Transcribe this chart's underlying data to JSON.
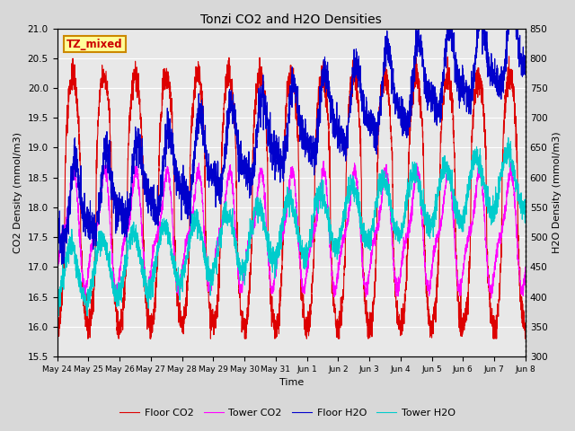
{
  "title": "Tonzi CO2 and H2O Densities",
  "xlabel": "Time",
  "ylabel_left": "CO2 Density (mmol/m3)",
  "ylabel_right": "H2O Density (mmol/m3)",
  "ylim_left": [
    15.5,
    21.0
  ],
  "ylim_right": [
    300,
    850
  ],
  "annotation": "TZ_mixed",
  "annotation_color": "#cc0000",
  "annotation_bg": "#ffff99",
  "annotation_border": "#cc8800",
  "xtick_labels": [
    "May 24",
    "May 25",
    "May 26",
    "May 27",
    "May 28",
    "May 29",
    "May 30",
    "May 31",
    "Jun 1",
    "Jun 2",
    "Jun 3",
    "Jun 4",
    "Jun 5",
    "Jun 6",
    "Jun 7",
    "Jun 8"
  ],
  "legend_labels": [
    "Floor CO2",
    "Tower CO2",
    "Floor H2O",
    "Tower H2O"
  ],
  "legend_colors": [
    "#dd0000",
    "#ff00ff",
    "#0000cc",
    "#00cccc"
  ],
  "background_color": "#d8d8d8",
  "plot_bg_color": "#e8e8e8",
  "grid_color": "#ffffff",
  "n_points": 3360,
  "seed": 42
}
